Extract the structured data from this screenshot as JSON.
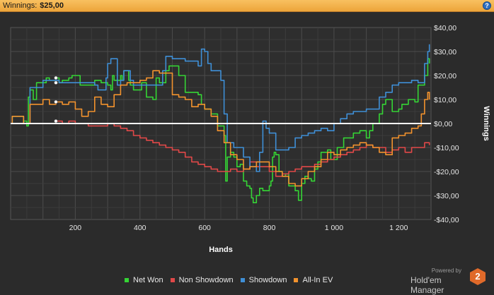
{
  "header": {
    "label": "Winnings:",
    "value": "$25,00",
    "help": "?"
  },
  "brand": {
    "powered_by": "Powered by",
    "name": "Hold'em Manager",
    "badge": "2"
  },
  "colors": {
    "background": "#2b2b2b",
    "grid": "#474747",
    "zero_line": "#ffffff",
    "net_won": "#35d435",
    "non_showdown": "#e04848",
    "showdown": "#3f8fd6",
    "all_in_ev": "#f2922d"
  },
  "chart_data": {
    "type": "line",
    "title": "",
    "xlabel": "Hands",
    "ylabel": "Winnings",
    "xlim": [
      0,
      1300
    ],
    "ylim": [
      -40,
      40
    ],
    "x_ticks": [
      200,
      400,
      600,
      800,
      1000,
      1200
    ],
    "x_tick_labels": [
      "200",
      "400",
      "600",
      "800",
      "1 000",
      "1 200"
    ],
    "y_ticks": [
      40,
      30,
      20,
      10,
      0,
      -10,
      -20,
      -30,
      -40
    ],
    "y_tick_labels": [
      "$40,00",
      "$30,00",
      "$20,00",
      "$10,00",
      "$0,00",
      "-$10,00",
      "-$20,00",
      "-$30,00",
      "-$40,00"
    ],
    "y_axis_side": "right",
    "grid": true,
    "zero_line": true,
    "legend_position": "bottom-center",
    "series": [
      {
        "name": "Net Won",
        "color": "#35d435",
        "points": [
          [
            0,
            0
          ],
          [
            5,
            3
          ],
          [
            40,
            1
          ],
          [
            50,
            -1
          ],
          [
            55,
            11
          ],
          [
            60,
            14
          ],
          [
            70,
            10
          ],
          [
            80,
            17
          ],
          [
            100,
            17
          ],
          [
            110,
            19
          ],
          [
            120,
            18
          ],
          [
            140,
            19
          ],
          [
            150,
            17
          ],
          [
            160,
            18
          ],
          [
            170,
            18
          ],
          [
            180,
            19
          ],
          [
            190,
            20
          ],
          [
            210,
            20
          ],
          [
            215,
            16
          ],
          [
            240,
            16
          ],
          [
            260,
            18
          ],
          [
            280,
            17
          ],
          [
            300,
            16
          ],
          [
            310,
            14
          ],
          [
            315,
            20
          ],
          [
            320,
            18
          ],
          [
            340,
            20
          ],
          [
            345,
            18
          ],
          [
            350,
            22
          ],
          [
            365,
            18
          ],
          [
            370,
            16
          ],
          [
            380,
            14
          ],
          [
            395,
            14
          ],
          [
            405,
            17
          ],
          [
            420,
            11
          ],
          [
            440,
            10
          ],
          [
            450,
            19
          ],
          [
            460,
            17
          ],
          [
            480,
            22
          ],
          [
            490,
            24
          ],
          [
            520,
            20
          ],
          [
            540,
            13
          ],
          [
            560,
            13
          ],
          [
            580,
            12
          ],
          [
            590,
            8
          ],
          [
            600,
            6
          ],
          [
            620,
            4
          ],
          [
            640,
            -1
          ],
          [
            660,
            -5
          ],
          [
            665,
            -24
          ],
          [
            670,
            -14
          ],
          [
            680,
            -12
          ],
          [
            690,
            -14
          ],
          [
            700,
            -18
          ],
          [
            710,
            -17
          ],
          [
            720,
            -24
          ],
          [
            730,
            -26
          ],
          [
            740,
            -27
          ],
          [
            745,
            -31
          ],
          [
            750,
            -33
          ],
          [
            760,
            -30
          ],
          [
            770,
            -27
          ],
          [
            780,
            -28
          ],
          [
            790,
            -28
          ],
          [
            800,
            -26
          ],
          [
            805,
            -24
          ],
          [
            810,
            -14
          ],
          [
            815,
            -12
          ],
          [
            820,
            -13
          ],
          [
            830,
            -20
          ],
          [
            840,
            -22
          ],
          [
            850,
            -21
          ],
          [
            860,
            -26
          ],
          [
            880,
            -28
          ],
          [
            890,
            -32
          ],
          [
            900,
            -25
          ],
          [
            910,
            -22
          ],
          [
            920,
            -23
          ],
          [
            930,
            -24
          ],
          [
            940,
            -19
          ],
          [
            950,
            -16
          ],
          [
            960,
            -12
          ],
          [
            980,
            -11
          ],
          [
            990,
            -15
          ],
          [
            1010,
            -10
          ],
          [
            1030,
            -6
          ],
          [
            1060,
            -4
          ],
          [
            1080,
            -3
          ],
          [
            1100,
            -6
          ],
          [
            1110,
            -3
          ],
          [
            1120,
            0
          ],
          [
            1140,
            4
          ],
          [
            1150,
            8
          ],
          [
            1160,
            10
          ],
          [
            1180,
            5
          ],
          [
            1200,
            6
          ],
          [
            1210,
            8
          ],
          [
            1230,
            10
          ],
          [
            1250,
            9
          ],
          [
            1260,
            16
          ],
          [
            1270,
            16
          ],
          [
            1280,
            20
          ],
          [
            1290,
            27
          ],
          [
            1295,
            25
          ]
        ]
      },
      {
        "name": "Non Showdown",
        "color": "#e04848",
        "points": [
          [
            0,
            0
          ],
          [
            20,
            0
          ],
          [
            40,
            0
          ],
          [
            60,
            0
          ],
          [
            80,
            0
          ],
          [
            100,
            0
          ],
          [
            120,
            0
          ],
          [
            140,
            1
          ],
          [
            160,
            0
          ],
          [
            180,
            1
          ],
          [
            200,
            0
          ],
          [
            220,
            0
          ],
          [
            240,
            -1
          ],
          [
            260,
            -1
          ],
          [
            280,
            -1
          ],
          [
            300,
            0
          ],
          [
            320,
            -1
          ],
          [
            340,
            -2
          ],
          [
            360,
            -3
          ],
          [
            380,
            -5
          ],
          [
            400,
            -6
          ],
          [
            420,
            -7
          ],
          [
            440,
            -8
          ],
          [
            460,
            -9
          ],
          [
            480,
            -10
          ],
          [
            500,
            -11
          ],
          [
            520,
            -12
          ],
          [
            540,
            -14
          ],
          [
            560,
            -16
          ],
          [
            580,
            -17
          ],
          [
            600,
            -18
          ],
          [
            620,
            -19
          ],
          [
            640,
            -20
          ],
          [
            660,
            -20
          ],
          [
            680,
            -19
          ],
          [
            700,
            -20
          ],
          [
            720,
            -19
          ],
          [
            740,
            -16
          ],
          [
            760,
            -18
          ],
          [
            780,
            -18
          ],
          [
            800,
            -20
          ],
          [
            820,
            -22
          ],
          [
            840,
            -21
          ],
          [
            860,
            -20
          ],
          [
            880,
            -19
          ],
          [
            900,
            -18
          ],
          [
            920,
            -18
          ],
          [
            940,
            -17
          ],
          [
            960,
            -16
          ],
          [
            980,
            -15
          ],
          [
            1000,
            -14
          ],
          [
            1020,
            -13
          ],
          [
            1040,
            -12
          ],
          [
            1060,
            -11
          ],
          [
            1080,
            -10
          ],
          [
            1100,
            -9
          ],
          [
            1120,
            -10
          ],
          [
            1140,
            -10
          ],
          [
            1160,
            -12
          ],
          [
            1180,
            -11
          ],
          [
            1200,
            -10
          ],
          [
            1220,
            -12
          ],
          [
            1240,
            -10
          ],
          [
            1260,
            -10
          ],
          [
            1280,
            -8
          ],
          [
            1295,
            -9
          ]
        ]
      },
      {
        "name": "Showdown",
        "color": "#3f8fd6",
        "points": [
          [
            0,
            0
          ],
          [
            5,
            3
          ],
          [
            40,
            0
          ],
          [
            60,
            15
          ],
          [
            100,
            18
          ],
          [
            150,
            17
          ],
          [
            200,
            17
          ],
          [
            240,
            17
          ],
          [
            260,
            16
          ],
          [
            270,
            14
          ],
          [
            290,
            14
          ],
          [
            295,
            19
          ],
          [
            300,
            25
          ],
          [
            310,
            27
          ],
          [
            330,
            16
          ],
          [
            340,
            18
          ],
          [
            350,
            22
          ],
          [
            360,
            22
          ],
          [
            370,
            18
          ],
          [
            380,
            16
          ],
          [
            400,
            16
          ],
          [
            440,
            16
          ],
          [
            470,
            22
          ],
          [
            480,
            28
          ],
          [
            500,
            27
          ],
          [
            540,
            26
          ],
          [
            560,
            26
          ],
          [
            580,
            24
          ],
          [
            590,
            31
          ],
          [
            600,
            30
          ],
          [
            610,
            25
          ],
          [
            620,
            22
          ],
          [
            640,
            22
          ],
          [
            650,
            18
          ],
          [
            660,
            4
          ],
          [
            670,
            -8
          ],
          [
            690,
            -10
          ],
          [
            720,
            -14
          ],
          [
            740,
            -18
          ],
          [
            760,
            -20
          ],
          [
            770,
            -12
          ],
          [
            780,
            1
          ],
          [
            790,
            -2
          ],
          [
            800,
            -4
          ],
          [
            820,
            -11
          ],
          [
            840,
            -11
          ],
          [
            860,
            -10
          ],
          [
            880,
            -6
          ],
          [
            900,
            -5
          ],
          [
            920,
            -4
          ],
          [
            940,
            -3
          ],
          [
            960,
            -2
          ],
          [
            980,
            -3
          ],
          [
            1000,
            0
          ],
          [
            1020,
            2
          ],
          [
            1040,
            4
          ],
          [
            1060,
            5
          ],
          [
            1080,
            5
          ],
          [
            1100,
            6
          ],
          [
            1120,
            6
          ],
          [
            1140,
            11
          ],
          [
            1160,
            13
          ],
          [
            1180,
            16
          ],
          [
            1200,
            17
          ],
          [
            1220,
            17
          ],
          [
            1240,
            18
          ],
          [
            1260,
            17
          ],
          [
            1280,
            25
          ],
          [
            1290,
            30
          ],
          [
            1295,
            33
          ]
        ]
      },
      {
        "name": "All-In EV",
        "color": "#f2922d",
        "points": [
          [
            0,
            0
          ],
          [
            5,
            3
          ],
          [
            40,
            0
          ],
          [
            60,
            8
          ],
          [
            80,
            8
          ],
          [
            100,
            10
          ],
          [
            120,
            8
          ],
          [
            140,
            9
          ],
          [
            160,
            8
          ],
          [
            180,
            9
          ],
          [
            200,
            6
          ],
          [
            220,
            3
          ],
          [
            240,
            5
          ],
          [
            260,
            11
          ],
          [
            280,
            8
          ],
          [
            300,
            7
          ],
          [
            320,
            12
          ],
          [
            340,
            16
          ],
          [
            360,
            17
          ],
          [
            380,
            17
          ],
          [
            400,
            18
          ],
          [
            420,
            19
          ],
          [
            440,
            22
          ],
          [
            460,
            21
          ],
          [
            480,
            21
          ],
          [
            500,
            12
          ],
          [
            520,
            11
          ],
          [
            540,
            10
          ],
          [
            560,
            7
          ],
          [
            580,
            8
          ],
          [
            600,
            6
          ],
          [
            620,
            3
          ],
          [
            640,
            -3
          ],
          [
            660,
            -8
          ],
          [
            680,
            -13
          ],
          [
            700,
            -15
          ],
          [
            720,
            -19
          ],
          [
            740,
            -18
          ],
          [
            760,
            -16
          ],
          [
            780,
            -16
          ],
          [
            800,
            -18
          ],
          [
            820,
            -20
          ],
          [
            840,
            -22
          ],
          [
            860,
            -25
          ],
          [
            880,
            -26
          ],
          [
            900,
            -23
          ],
          [
            920,
            -20
          ],
          [
            940,
            -18
          ],
          [
            960,
            -15
          ],
          [
            980,
            -12
          ],
          [
            1000,
            -13
          ],
          [
            1020,
            -11
          ],
          [
            1040,
            -10
          ],
          [
            1060,
            -9
          ],
          [
            1080,
            -8
          ],
          [
            1100,
            -9
          ],
          [
            1120,
            -10
          ],
          [
            1140,
            -12
          ],
          [
            1160,
            -13
          ],
          [
            1180,
            -6
          ],
          [
            1200,
            -5
          ],
          [
            1220,
            -4
          ],
          [
            1240,
            -2
          ],
          [
            1260,
            -1
          ],
          [
            1270,
            4
          ],
          [
            1280,
            10
          ],
          [
            1290,
            13
          ],
          [
            1295,
            10
          ]
        ]
      }
    ],
    "markers": [
      {
        "series": "Net Won",
        "x": 140,
        "y": 19
      },
      {
        "series": "Showdown",
        "x": 140,
        "y": 17
      },
      {
        "series": "All-In EV",
        "x": 140,
        "y": 9
      },
      {
        "series": "Non Showdown",
        "x": 140,
        "y": 1
      }
    ]
  }
}
